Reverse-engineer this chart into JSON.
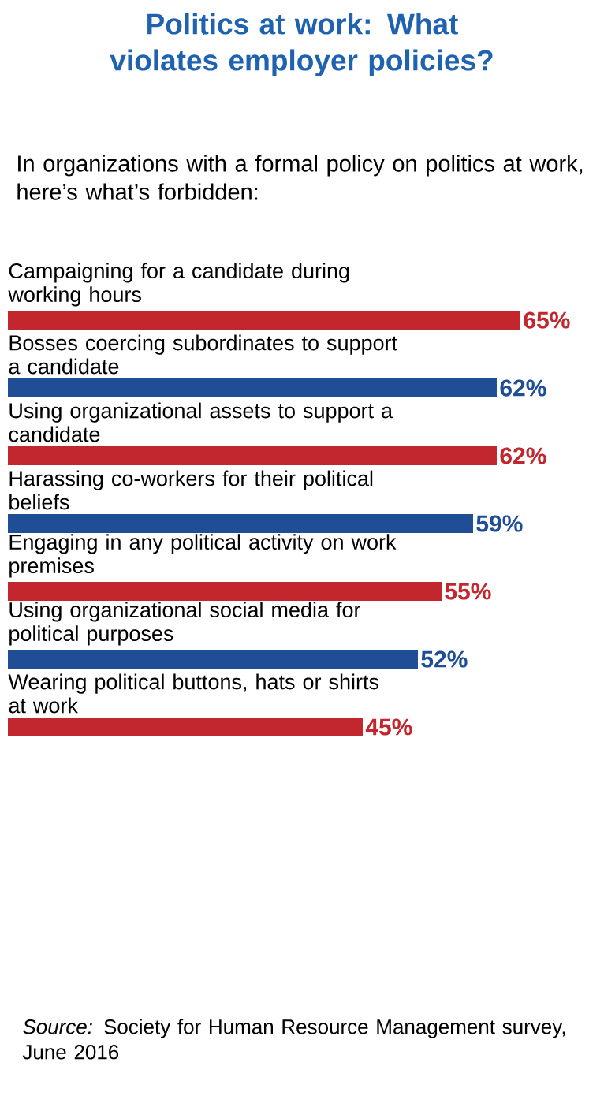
{
  "chart_data": {
    "type": "bar",
    "orientation": "horizontal",
    "title": "Politics at work: What violates employer policies?",
    "subtitle": "In organizations with a formal policy on politics at work, here’s what’s forbidden:",
    "categories": [
      "Campaigning for a candidate during working hours",
      "Bosses coercing subordinates to support a candidate",
      "Using organizational assets to support a candidate",
      "Harassing co-workers for their political beliefs",
      "Engaging in any political activity on work premises",
      "Using organizational social media for political purposes",
      "Wearing political buttons, hats or shirts at work"
    ],
    "values": [
      65,
      62,
      62,
      59,
      55,
      52,
      45
    ],
    "value_labels": [
      "65%",
      "62%",
      "62%",
      "59%",
      "55%",
      "52%",
      "45%"
    ],
    "colors": [
      "#c1272d",
      "#1f4e96",
      "#c1272d",
      "#1f4e96",
      "#c1272d",
      "#1f4e96",
      "#c1272d"
    ],
    "annotations": [
      "*Source:* Society for Human Resource Management survey, June 2016"
    ]
  }
}
